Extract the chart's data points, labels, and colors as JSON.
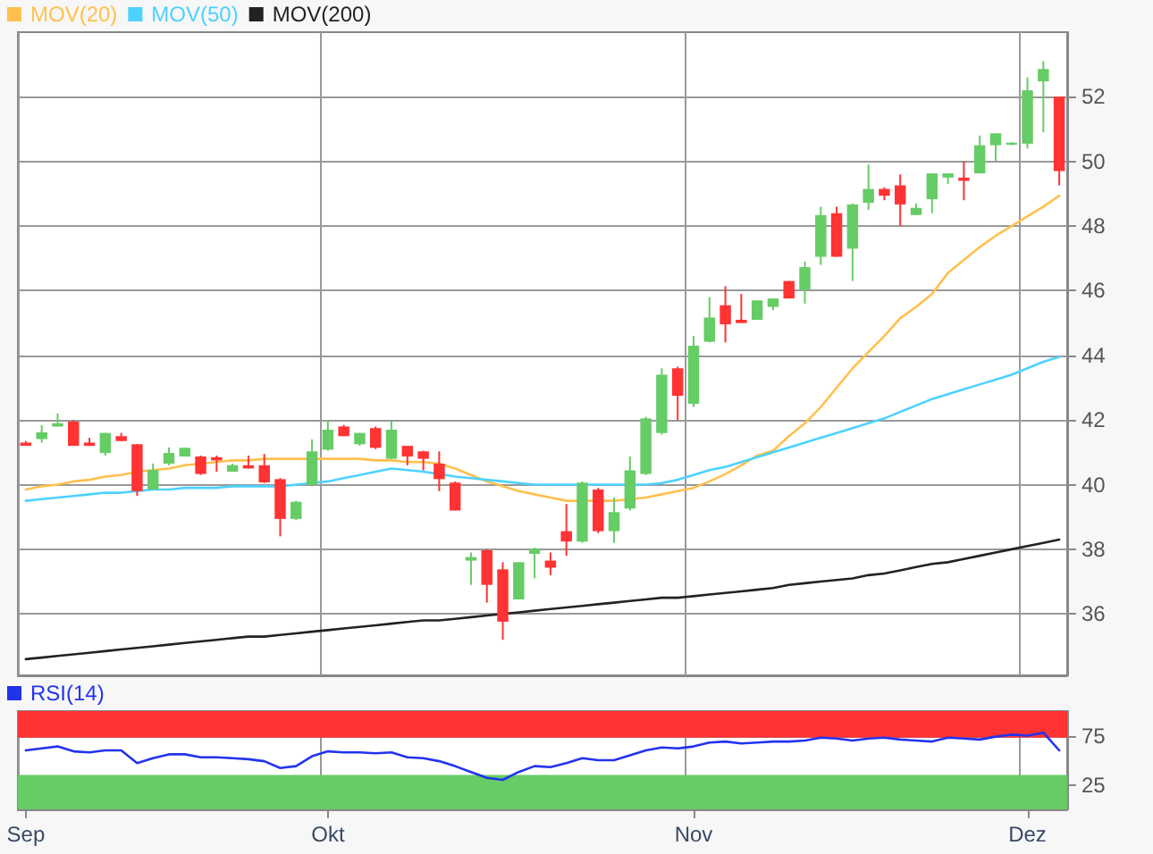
{
  "chart_data": [
    {
      "type": "candlestick",
      "categories": [
        null,
        null,
        null,
        null,
        null,
        null,
        null,
        null,
        null,
        null,
        null,
        null,
        null,
        null,
        null,
        null,
        null,
        null,
        null,
        null,
        null,
        null,
        null,
        null,
        null,
        null,
        null,
        null,
        null,
        null,
        null,
        null,
        null,
        null,
        null,
        null,
        null,
        null,
        null,
        null,
        null,
        null,
        null,
        null,
        null,
        null,
        null,
        null,
        null,
        null,
        null,
        null,
        null,
        null,
        null,
        null,
        null,
        null,
        null,
        null,
        null,
        null,
        null,
        null,
        null,
        null
      ],
      "ohlc": [
        [
          41.3,
          41.35,
          41.2,
          41.2
        ],
        [
          41.41,
          41.84,
          41.3,
          41.62
        ],
        [
          41.8,
          42.2,
          41.8,
          41.9
        ],
        [
          41.95,
          42.0,
          41.2,
          41.2
        ],
        [
          41.3,
          41.45,
          41.2,
          41.2
        ],
        [
          40.98,
          41.6,
          40.9,
          41.6
        ],
        [
          41.5,
          41.6,
          41.35,
          41.35
        ],
        [
          41.25,
          41.25,
          39.65,
          39.8
        ],
        [
          39.85,
          40.65,
          39.85,
          40.45
        ],
        [
          40.65,
          41.15,
          40.6,
          40.98
        ],
        [
          40.87,
          41.15,
          40.87,
          41.14
        ],
        [
          40.87,
          40.9,
          40.3,
          40.33
        ],
        [
          40.85,
          40.9,
          40.4,
          40.75
        ],
        [
          40.4,
          40.65,
          40.4,
          40.6
        ],
        [
          40.6,
          40.9,
          40.5,
          40.5
        ],
        [
          40.6,
          40.95,
          40.05,
          40.07
        ],
        [
          40.17,
          40.2,
          38.4,
          38.94
        ],
        [
          38.94,
          39.5,
          38.9,
          39.47
        ],
        [
          40.0,
          41.4,
          39.95,
          41.03
        ],
        [
          41.08,
          42.0,
          41.05,
          41.7
        ],
        [
          41.8,
          41.85,
          41.5,
          41.5
        ],
        [
          41.25,
          41.6,
          41.2,
          41.6
        ],
        [
          41.75,
          41.8,
          41.1,
          41.14
        ],
        [
          40.8,
          41.95,
          40.8,
          41.7
        ],
        [
          41.2,
          41.2,
          40.6,
          40.87
        ],
        [
          41.03,
          41.05,
          40.44,
          40.8
        ],
        [
          40.65,
          41.03,
          39.8,
          40.17
        ],
        [
          40.06,
          40.1,
          39.2,
          39.2
        ],
        [
          37.65,
          37.9,
          36.9,
          37.76
        ],
        [
          37.97,
          38.0,
          36.35,
          36.9
        ],
        [
          37.38,
          37.6,
          35.2,
          35.76
        ],
        [
          36.45,
          37.6,
          36.45,
          37.6
        ],
        [
          37.86,
          38.05,
          37.1,
          38.02
        ],
        [
          37.65,
          37.9,
          37.2,
          37.43
        ],
        [
          38.56,
          39.4,
          37.8,
          38.24
        ],
        [
          38.24,
          40.1,
          38.2,
          40.06
        ],
        [
          39.85,
          39.9,
          38.5,
          38.56
        ],
        [
          38.56,
          39.6,
          38.2,
          39.15
        ],
        [
          39.26,
          40.87,
          39.2,
          40.44
        ],
        [
          40.33,
          42.1,
          40.3,
          42.05
        ],
        [
          41.6,
          43.6,
          41.55,
          43.4
        ],
        [
          43.6,
          43.65,
          42.0,
          42.75
        ],
        [
          42.5,
          44.6,
          42.4,
          44.3
        ],
        [
          44.42,
          45.8,
          44.4,
          45.17
        ],
        [
          45.55,
          46.14,
          44.4,
          44.96
        ],
        [
          45.1,
          45.9,
          45.0,
          45.0
        ],
        [
          45.1,
          45.7,
          45.1,
          45.7
        ],
        [
          45.5,
          45.76,
          45.4,
          45.76
        ],
        [
          46.3,
          46.3,
          45.76,
          45.76
        ],
        [
          46.03,
          46.9,
          45.6,
          46.73
        ],
        [
          47.05,
          48.6,
          46.8,
          48.34
        ],
        [
          48.4,
          48.6,
          47.05,
          47.05
        ],
        [
          47.3,
          48.7,
          46.3,
          48.67
        ],
        [
          48.72,
          49.9,
          48.5,
          49.15
        ],
        [
          49.15,
          49.2,
          48.8,
          48.94
        ],
        [
          49.26,
          49.6,
          48.0,
          48.67
        ],
        [
          48.34,
          48.7,
          48.34,
          48.56
        ],
        [
          48.83,
          49.63,
          48.4,
          49.63
        ],
        [
          49.5,
          49.63,
          49.3,
          49.63
        ],
        [
          49.5,
          50.0,
          48.8,
          49.4
        ],
        [
          49.63,
          50.8,
          49.63,
          50.5
        ],
        [
          50.5,
          50.87,
          50.0,
          50.87
        ],
        [
          50.52,
          50.6,
          50.5,
          50.58
        ],
        [
          50.55,
          52.6,
          50.4,
          52.2
        ],
        [
          52.48,
          53.1,
          50.9,
          52.86
        ],
        [
          52.0,
          52.0,
          49.26,
          49.7
        ]
      ],
      "series": [
        {
          "name": "MOV(20)",
          "type": "line",
          "color": "#ffc04d",
          "values": [
            39.85,
            39.95,
            40.0,
            40.1,
            40.15,
            40.25,
            40.3,
            40.4,
            40.45,
            40.5,
            40.6,
            40.65,
            40.7,
            40.75,
            40.75,
            40.8,
            40.8,
            40.8,
            40.8,
            40.8,
            40.8,
            40.8,
            40.75,
            40.75,
            40.7,
            40.7,
            40.65,
            40.5,
            40.3,
            40.1,
            39.95,
            39.8,
            39.7,
            39.6,
            39.5,
            39.5,
            39.5,
            39.5,
            39.55,
            39.6,
            39.7,
            39.8,
            39.9,
            40.1,
            40.33,
            40.6,
            40.9,
            41.05,
            41.5,
            41.9,
            42.4,
            43.0,
            43.6,
            44.1,
            44.6,
            45.15,
            45.5,
            45.9,
            46.55,
            46.95,
            47.35,
            47.7,
            48.0,
            48.3,
            48.6,
            48.94
          ]
        },
        {
          "name": "MOV(50)",
          "type": "line",
          "color": "#4dd2ff",
          "values": [
            39.5,
            39.55,
            39.6,
            39.65,
            39.7,
            39.75,
            39.75,
            39.8,
            39.85,
            39.85,
            39.9,
            39.9,
            39.9,
            39.95,
            39.95,
            39.95,
            39.95,
            40.0,
            40.05,
            40.1,
            40.2,
            40.3,
            40.4,
            40.5,
            40.45,
            40.4,
            40.33,
            40.25,
            40.2,
            40.15,
            40.1,
            40.05,
            40.0,
            40.0,
            40.0,
            40.0,
            40.0,
            40.0,
            40.0,
            40.0,
            40.05,
            40.15,
            40.3,
            40.45,
            40.55,
            40.7,
            40.85,
            41.0,
            41.15,
            41.3,
            41.45,
            41.6,
            41.75,
            41.9,
            42.05,
            42.25,
            42.45,
            42.65,
            42.8,
            42.95,
            43.1,
            43.25,
            43.4,
            43.6,
            43.8,
            43.95
          ]
        },
        {
          "name": "MOV(200)",
          "type": "line",
          "color": "#222222",
          "values": [
            34.6,
            34.65,
            34.7,
            34.75,
            34.8,
            34.85,
            34.9,
            34.95,
            35.0,
            35.05,
            35.1,
            35.15,
            35.2,
            35.25,
            35.3,
            35.3,
            35.35,
            35.4,
            35.45,
            35.5,
            35.55,
            35.6,
            35.65,
            35.7,
            35.75,
            35.8,
            35.8,
            35.85,
            35.9,
            35.95,
            36.0,
            36.05,
            36.1,
            36.15,
            36.2,
            36.25,
            36.3,
            36.35,
            36.4,
            36.45,
            36.5,
            36.5,
            36.55,
            36.6,
            36.65,
            36.7,
            36.75,
            36.8,
            36.9,
            36.95,
            37.0,
            37.05,
            37.1,
            37.2,
            37.25,
            37.35,
            37.45,
            37.55,
            37.6,
            37.7,
            37.8,
            37.9,
            38.0,
            38.1,
            38.2,
            38.3
          ]
        }
      ],
      "ylim": [
        34.1,
        54
      ],
      "yticks": [
        36,
        38,
        40,
        42,
        44,
        46,
        48,
        50,
        52
      ],
      "grid": true,
      "legend": "top left",
      "marker": "none",
      "line_style": "solid",
      "tick_labels": "y"
    },
    {
      "type": "line",
      "categories": [
        "Sep",
        null,
        null,
        null,
        null,
        null,
        null,
        null,
        null,
        null,
        null,
        null,
        null,
        null,
        null,
        null,
        null,
        null,
        null,
        "Okt",
        null,
        null,
        null,
        null,
        null,
        null,
        null,
        null,
        null,
        null,
        null,
        null,
        null,
        null,
        null,
        null,
        null,
        null,
        null,
        null,
        null,
        null,
        "Nov",
        null,
        null,
        null,
        null,
        null,
        null,
        null,
        null,
        null,
        null,
        null,
        null,
        null,
        null,
        null,
        null,
        null,
        null,
        null,
        null,
        "Dez",
        null,
        null
      ],
      "series": [
        {
          "name": "RSI(14)",
          "color": "#2233ee",
          "values": [
            60,
            62,
            64,
            59,
            58,
            60,
            60,
            47,
            52,
            56,
            56,
            53,
            53,
            52,
            51,
            49,
            42,
            44,
            54,
            59,
            58,
            58,
            57,
            58,
            53,
            52,
            49,
            44,
            38,
            32,
            30,
            38,
            44,
            43,
            47,
            52,
            50,
            50,
            55,
            60,
            63,
            62,
            64,
            68,
            69,
            67,
            68,
            69,
            69,
            70,
            73,
            72,
            70,
            72,
            73,
            71,
            70,
            69,
            73,
            72,
            71,
            74,
            76,
            75,
            78,
            60
          ]
        }
      ],
      "ylim": [
        0,
        100
      ],
      "yticks": [
        25,
        75
      ],
      "bands": [
        {
          "axis": "y",
          "from": 73,
          "to": 100,
          "color": "#ff3333"
        },
        {
          "axis": "y",
          "from": 0,
          "to": 35,
          "color": "#66cc66"
        }
      ],
      "grid": true,
      "legend": "top left",
      "marker": "none",
      "line_style": "solid"
    }
  ]
}
